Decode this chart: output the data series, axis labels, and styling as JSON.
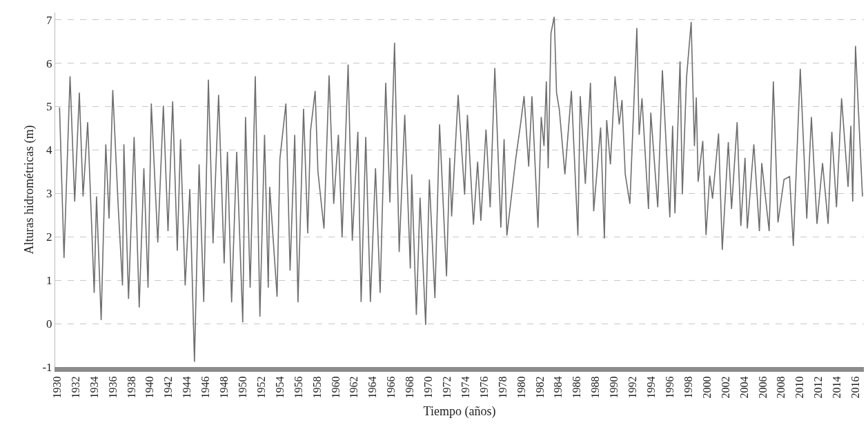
{
  "chart_data": {
    "type": "line",
    "xlabel": "Tiempo (años)",
    "ylabel": "Alturas hidrométricas (m)",
    "xlim": [
      1929.8,
      2016.9
    ],
    "xticks": [
      1930,
      1932,
      1934,
      1936,
      1938,
      1940,
      1942,
      1944,
      1946,
      1948,
      1950,
      1952,
      1954,
      1956,
      1958,
      1960,
      1962,
      1964,
      1966,
      1968,
      1970,
      1972,
      1974,
      1976,
      1978,
      1980,
      1982,
      1984,
      1986,
      1988,
      1990,
      1992,
      1994,
      1996,
      1998,
      2000,
      2002,
      2004,
      2006,
      2008,
      2010,
      2012,
      2014,
      2016
    ],
    "ylim": [
      -1,
      7.17
    ],
    "yticks": [
      -1,
      0,
      1,
      2,
      3,
      4,
      5,
      6,
      7
    ],
    "grid": "y",
    "marker": "none",
    "line_style": "solid",
    "series": [
      {
        "color": "#6e6e6e",
        "x": [
          1930.27,
          1930.75,
          1931.4,
          1931.9,
          1932.4,
          1932.8,
          1933.3,
          1934.0,
          1934.25,
          1934.75,
          1935.25,
          1935.6,
          1936.0,
          1936.6,
          1937.05,
          1937.2,
          1937.7,
          1938.3,
          1938.85,
          1939.35,
          1939.8,
          1940.15,
          1940.85,
          1941.45,
          1941.95,
          1942.45,
          1942.95,
          1943.3,
          1943.8,
          1944.3,
          1944.8,
          1945.3,
          1945.8,
          1946.3,
          1946.8,
          1947.4,
          1948.0,
          1948.35,
          1948.8,
          1949.35,
          1950.0,
          1950.3,
          1950.8,
          1951.35,
          1951.85,
          1952.35,
          1952.75,
          1952.9,
          1953.7,
          1954.0,
          1954.65,
          1955.1,
          1955.6,
          1955.95,
          1956.55,
          1957.0,
          1957.3,
          1957.8,
          1958.1,
          1958.75,
          1959.3,
          1959.8,
          1960.3,
          1960.7,
          1961.35,
          1961.8,
          1962.4,
          1962.75,
          1963.25,
          1963.75,
          1964.3,
          1964.8,
          1965.4,
          1965.85,
          1966.35,
          1966.85,
          1967.45,
          1968.05,
          1968.2,
          1968.7,
          1969.1,
          1969.7,
          1970.1,
          1970.7,
          1971.2,
          1971.95,
          1972.3,
          1972.5,
          1973.2,
          1973.9,
          1974.2,
          1974.85,
          1975.3,
          1975.65,
          1976.2,
          1976.65,
          1977.15,
          1977.8,
          1978.15,
          1978.45,
          1979.4,
          1979.95,
          1980.3,
          1980.8,
          1981.15,
          1981.8,
          1982.15,
          1982.45,
          1982.7,
          1982.9,
          1983.2,
          1983.55,
          1983.8,
          1984.1,
          1984.7,
          1985.4,
          1986.1,
          1986.35,
          1986.9,
          1987.45,
          1987.8,
          1988.55,
          1988.95,
          1989.2,
          1989.6,
          1990.1,
          1990.55,
          1990.85,
          1991.2,
          1991.7,
          1992.45,
          1992.7,
          1993.0,
          1993.7,
          1993.95,
          1994.7,
          1995.2,
          1996.0,
          1996.3,
          1996.55,
          1997.1,
          1997.35,
          1997.8,
          1998.3,
          1998.65,
          1998.85,
          1999.05,
          1999.55,
          1999.9,
          2000.3,
          2000.6,
          2001.25,
          2001.65,
          2002.3,
          2002.65,
          2003.25,
          2003.65,
          2004.1,
          2004.35,
          2005.05,
          2005.65,
          2005.9,
          2006.7,
          2007.15,
          2007.65,
          2008.3,
          2008.9,
          2009.3,
          2010.05,
          2010.75,
          2011.25,
          2011.85,
          2012.45,
          2013.05,
          2013.45,
          2013.95,
          2014.5,
          2015.2,
          2015.5,
          2015.7,
          2016.0,
          2016.2,
          2016.75
        ],
        "values": [
          4.98,
          1.51,
          5.7,
          2.81,
          5.32,
          2.93,
          4.64,
          0.71,
          2.93,
          0.08,
          4.13,
          2.42,
          5.38,
          2.64,
          0.88,
          4.13,
          0.57,
          4.3,
          0.37,
          3.58,
          0.83,
          5.07,
          1.87,
          5.02,
          2.13,
          5.12,
          1.68,
          4.25,
          0.88,
          3.1,
          -0.88,
          3.67,
          0.5,
          5.62,
          1.85,
          5.27,
          1.39,
          3.96,
          0.49,
          3.96,
          0.03,
          4.76,
          0.83,
          5.7,
          0.16,
          4.35,
          0.83,
          3.15,
          0.62,
          3.79,
          5.07,
          1.22,
          4.35,
          0.49,
          4.95,
          2.08,
          4.44,
          5.36,
          3.5,
          2.19,
          5.72,
          2.76,
          4.35,
          1.99,
          5.97,
          1.91,
          4.42,
          0.5,
          4.3,
          0.5,
          3.58,
          0.71,
          5.55,
          2.79,
          6.47,
          1.65,
          4.81,
          1.27,
          3.44,
          0.2,
          2.9,
          -0.03,
          3.32,
          0.59,
          4.59,
          1.09,
          3.82,
          2.47,
          5.27,
          2.97,
          4.81,
          2.28,
          3.73,
          2.37,
          4.47,
          2.68,
          5.89,
          2.21,
          4.25,
          2.03,
          3.79,
          4.64,
          5.24,
          3.62,
          5.24,
          2.21,
          4.76,
          4.09,
          5.58,
          3.58,
          6.69,
          7.07,
          5.32,
          4.93,
          3.44,
          5.36,
          2.03,
          5.24,
          3.22,
          5.55,
          2.59,
          4.52,
          1.96,
          4.69,
          3.67,
          5.7,
          4.59,
          5.15,
          3.44,
          2.76,
          6.81,
          4.35,
          5.19,
          2.64,
          4.86,
          2.68,
          5.84,
          2.45,
          4.56,
          2.54,
          6.04,
          2.98,
          5.67,
          6.95,
          4.09,
          5.21,
          3.27,
          4.21,
          2.04,
          3.41,
          2.88,
          4.38,
          1.7,
          4.18,
          2.64,
          4.64,
          2.25,
          3.82,
          2.19,
          4.13,
          2.13,
          3.7,
          2.13,
          5.58,
          2.33,
          3.32,
          3.39,
          1.79,
          5.87,
          2.42,
          4.76,
          2.3,
          3.7,
          2.3,
          4.42,
          2.68,
          5.19,
          3.15,
          4.56,
          2.81,
          6.4,
          5.44,
          2.93
        ]
      }
    ]
  }
}
